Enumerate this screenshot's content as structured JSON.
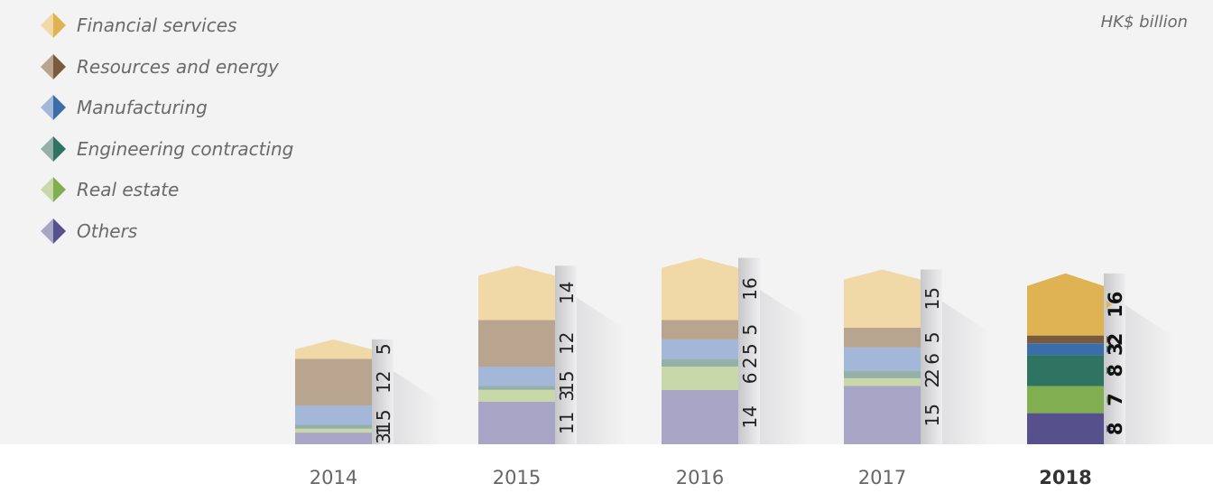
{
  "unit_label": "HK$ billion",
  "legend": [
    {
      "label": "Financial services",
      "light": "#f0d9a6",
      "dark": "#dfb354"
    },
    {
      "label": "Resources and energy",
      "light": "#b8a48f",
      "dark": "#7a5a3c"
    },
    {
      "label": "Manufacturing",
      "light": "#a3b7d8",
      "dark": "#3a6ea9"
    },
    {
      "label": "Engineering contracting",
      "light": "#94b0a9",
      "dark": "#2f7463"
    },
    {
      "label": "Real estate",
      "light": "#c8d8a8",
      "dark": "#82ae52"
    },
    {
      "label": "Others",
      "light": "#a9a5c6",
      "dark": "#56508c"
    }
  ],
  "chart_data": {
    "type": "bar",
    "stacked": true,
    "categories": [
      "2014",
      "2015",
      "2016",
      "2017",
      "2018"
    ],
    "highlight_category": "2018",
    "series": [
      {
        "name": "Others",
        "values": [
          3,
          11,
          14,
          15,
          8
        ]
      },
      {
        "name": "Real estate",
        "values": [
          1,
          3,
          6,
          2,
          7
        ]
      },
      {
        "name": "Engineering contracting",
        "values": [
          1,
          1,
          2,
          2,
          8
        ]
      },
      {
        "name": "Manufacturing",
        "values": [
          5,
          5,
          5,
          6,
          3
        ]
      },
      {
        "name": "Resources and energy",
        "values": [
          12,
          12,
          5,
          5,
          2
        ]
      },
      {
        "name": "Financial services",
        "values": [
          5,
          14,
          16,
          15,
          16
        ]
      }
    ],
    "ylabel": "HK$ billion",
    "legend_position": "top-left",
    "grid": false
  }
}
